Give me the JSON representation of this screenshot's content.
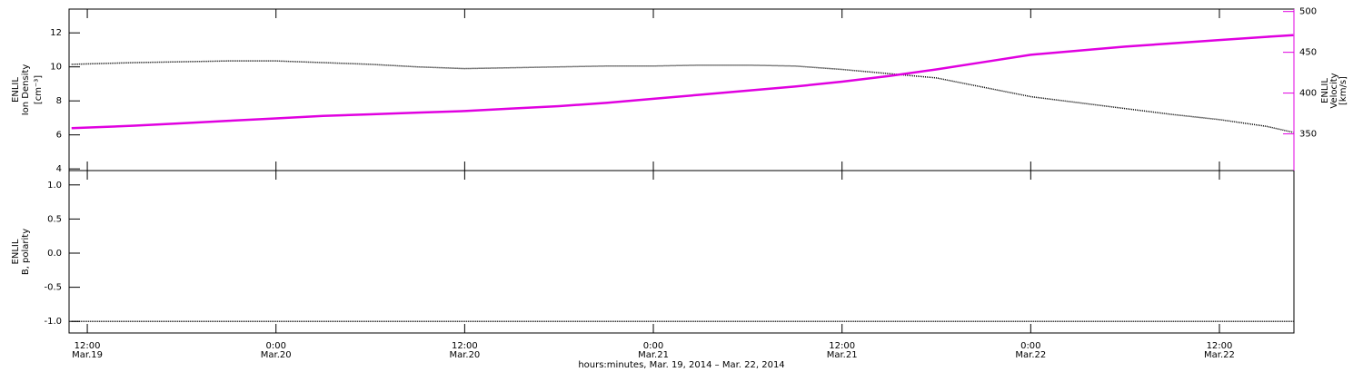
{
  "chart_data": [
    {
      "type": "line",
      "ylabel": [
        "ENLIL",
        "Ion Density",
        "[cm⁻³]"
      ],
      "y2label": [
        "ENLIL",
        "Velocity",
        "[km/s]"
      ],
      "xlim": [
        10.84,
        88.74
      ],
      "x": [
        11,
        15,
        18,
        21,
        24,
        27,
        30,
        33,
        36,
        39,
        42,
        45,
        48,
        51,
        54,
        57,
        60,
        63,
        66,
        69,
        72,
        75,
        78,
        81,
        84,
        87,
        88.7
      ],
      "ylim": [
        3.9,
        13.4
      ],
      "yticks": [
        4,
        6,
        8,
        10,
        12
      ],
      "y2lim": [
        305,
        503
      ],
      "y2ticks": [
        350,
        400,
        450,
        500
      ],
      "series": [
        {
          "name": "Ion Density",
          "color": "#000000",
          "values": [
            10.15,
            10.25,
            10.3,
            10.35,
            10.35,
            10.25,
            10.15,
            10.0,
            9.9,
            9.95,
            10.0,
            10.05,
            10.05,
            10.1,
            10.1,
            10.05,
            9.85,
            9.6,
            9.35,
            8.8,
            8.25,
            7.9,
            7.55,
            7.2,
            6.9,
            6.5,
            6.15
          ]
        },
        {
          "name": "Velocity",
          "color": "#e000e0",
          "axis": "y2",
          "values": [
            357,
            360,
            363,
            366,
            369,
            372,
            374,
            376,
            378,
            381,
            384,
            388,
            393,
            398,
            403,
            408,
            414,
            421,
            429,
            438,
            447,
            452,
            457,
            461,
            465,
            469,
            471
          ]
        }
      ]
    },
    {
      "type": "line",
      "ylabel": [
        "ENLIL",
        "B, polarity"
      ],
      "xlabel": "hours:minutes, Mar. 19, 2014 – Mar. 22, 2014",
      "xlim": [
        10.84,
        88.74
      ],
      "xticks": [
        {
          "value": 12,
          "label": "12:00"
        },
        {
          "value": 24,
          "label": "0:00"
        },
        {
          "value": 36,
          "label": "12:00"
        },
        {
          "value": 48,
          "label": "0:00"
        },
        {
          "value": 60,
          "label": "12:00"
        },
        {
          "value": 72,
          "label": "0:00"
        },
        {
          "value": 84,
          "label": "12:00"
        }
      ],
      "xtick_dates": [
        "Mar.19",
        "Mar.20",
        "Mar.20",
        "Mar.21",
        "Mar.21",
        "Mar.22",
        "Mar.22"
      ],
      "x": [
        11,
        15,
        18,
        21,
        24,
        27,
        30,
        33,
        36,
        39,
        42,
        45,
        48,
        51,
        54,
        57,
        60,
        63,
        66,
        69,
        72,
        75,
        78,
        81,
        84,
        87,
        88.7
      ],
      "ylim": [
        -1.17,
        1.21
      ],
      "yticks": [
        {
          "value": -1,
          "label": "-1.0"
        },
        {
          "value": -0.5,
          "label": "-0.5"
        },
        {
          "value": 0,
          "label": "0.0"
        },
        {
          "value": 0.5,
          "label": "0.5"
        },
        {
          "value": 1,
          "label": "1.0"
        }
      ],
      "series": [
        {
          "name": "B polarity",
          "color": "#000000",
          "values": [
            -1,
            -1,
            -1,
            -1,
            -1,
            -1,
            -1,
            -1,
            -1,
            -1,
            -1,
            -1,
            -1,
            -1,
            -1,
            -1,
            -1,
            -1,
            -1,
            -1,
            -1,
            -1,
            -1,
            -1,
            -1,
            -1,
            -1
          ]
        }
      ]
    }
  ]
}
